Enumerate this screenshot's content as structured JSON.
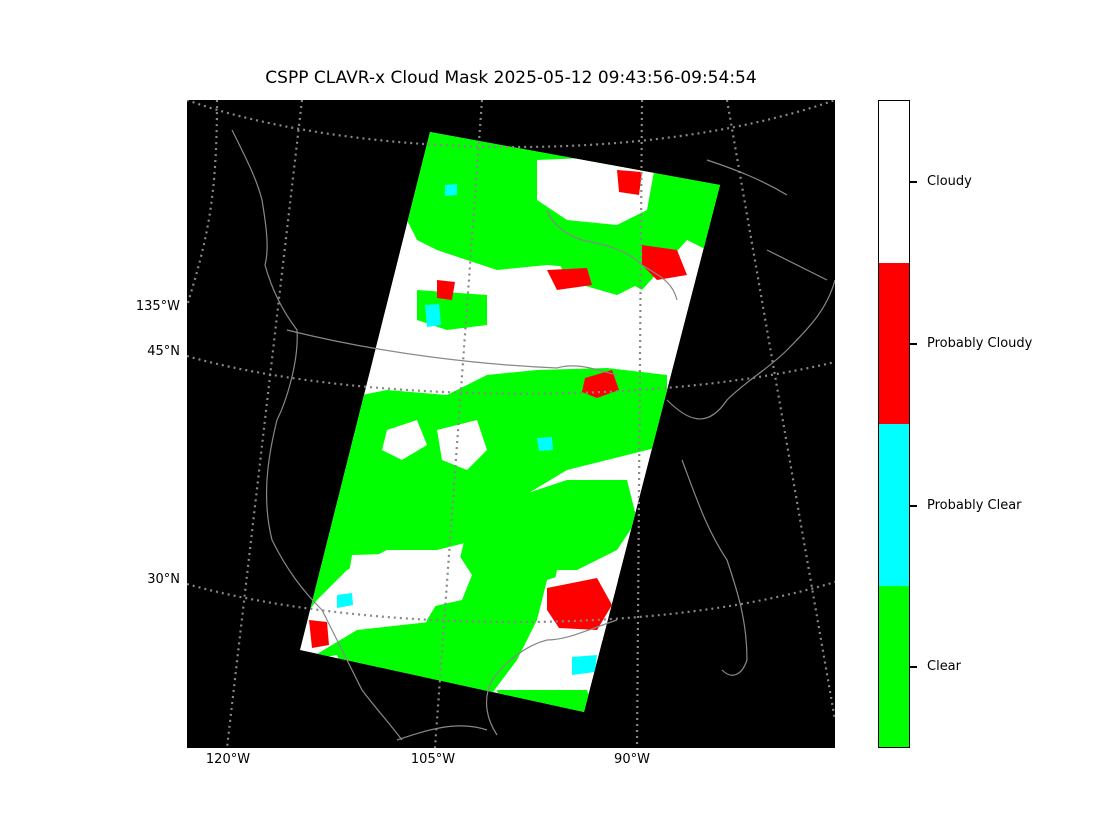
{
  "title": "CSPP CLAVR-x Cloud Mask 2025-05-12 09:43:56-09:54:54",
  "lat_labels": [
    "135°W",
    "45°N",
    "30°N"
  ],
  "lon_labels": [
    "120°W",
    "105°W",
    "90°W"
  ],
  "colorbar": {
    "categories": [
      {
        "label": "Cloudy",
        "color": "#ffffff"
      },
      {
        "label": "Probably Cloudy",
        "color": "#ff0000"
      },
      {
        "label": "Probably Clear",
        "color": "#00ffff"
      },
      {
        "label": "Clear",
        "color": "#00ff00"
      }
    ]
  },
  "map": {
    "background": "#000000",
    "coastline_color": "#888888",
    "graticule_color": "#888888"
  }
}
